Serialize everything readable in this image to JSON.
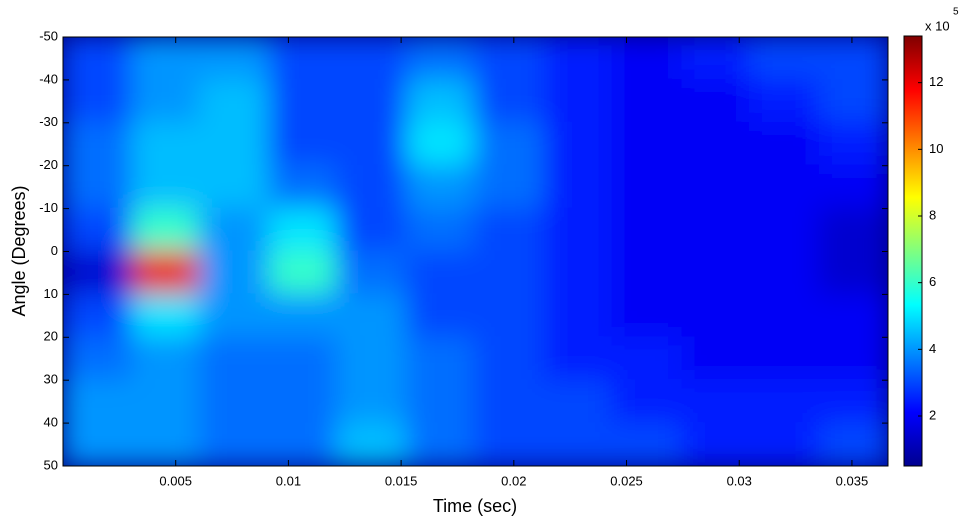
{
  "chart_data": {
    "type": "heatmap",
    "xlabel": "Time (sec)",
    "ylabel": "Angle (Degrees)",
    "x": [
      0.0015,
      0.0046,
      0.0076,
      0.0107,
      0.0137,
      0.0168,
      0.0198,
      0.0229,
      0.0259,
      0.029,
      0.032,
      0.0351
    ],
    "y": [
      -45,
      -35,
      -25,
      -15,
      -5,
      5,
      15,
      25,
      35,
      45
    ],
    "z": [
      [
        3,
        4,
        4,
        3,
        3,
        3.5,
        3,
        2.5,
        2,
        2.5,
        3,
        3
      ],
      [
        3,
        4,
        4.5,
        3,
        3,
        4.5,
        3,
        2.5,
        2,
        2,
        2.5,
        3
      ],
      [
        3.5,
        4.5,
        4.5,
        3,
        3,
        5,
        3.5,
        2.5,
        2,
        2,
        2,
        2.5
      ],
      [
        3.5,
        4.5,
        4.5,
        3.5,
        3,
        4,
        3.5,
        2.5,
        2,
        2,
        2,
        2
      ],
      [
        3,
        6,
        4,
        5,
        3,
        3.5,
        3,
        2.5,
        2,
        2,
        2,
        1.5
      ],
      [
        1.5,
        12,
        4,
        6,
        3.5,
        3,
        3,
        2.5,
        2,
        2,
        2,
        1.5
      ],
      [
        3,
        5,
        4,
        4,
        4,
        3,
        3,
        2.5,
        2,
        2,
        2,
        2
      ],
      [
        3.5,
        4,
        3.5,
        3.5,
        4,
        3.5,
        3,
        2.5,
        2.5,
        2,
        2,
        2
      ],
      [
        4,
        4,
        3.5,
        3.5,
        4,
        3.5,
        3,
        3,
        2.5,
        2.5,
        2.5,
        2.5
      ],
      [
        4,
        4,
        3.5,
        3.5,
        4.5,
        3.5,
        3,
        3,
        3,
        2.5,
        2.5,
        3
      ]
    ],
    "xlim": [
      0,
      0.0366
    ],
    "xticks": [
      0.005,
      0.01,
      0.015,
      0.02,
      0.025,
      0.03,
      0.035
    ],
    "ylim": [
      -50,
      50
    ],
    "yticks": [
      -50,
      -40,
      -30,
      -20,
      -10,
      0,
      10,
      20,
      30,
      40,
      50
    ],
    "clim": [
      0.5,
      13.4
    ],
    "cticks": [
      2,
      4,
      6,
      8,
      10,
      12
    ],
    "colorbar_exponent_base": "x 10",
    "colorbar_exponent": "5",
    "colormap": "jet"
  }
}
